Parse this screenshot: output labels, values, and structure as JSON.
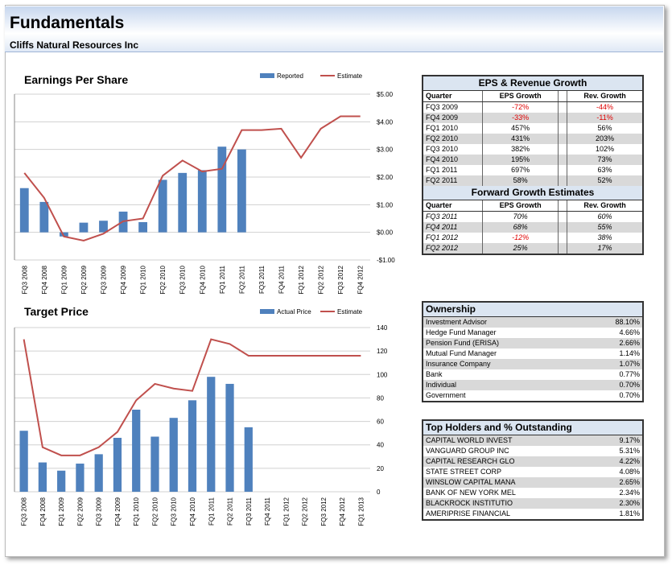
{
  "header": {
    "title": "Fundamentals",
    "subtitle": "Cliffs Natural Resources Inc"
  },
  "chart_data": [
    {
      "type": "combo",
      "title": "Earnings Per Share",
      "categories": [
        "FQ3 2008",
        "FQ4 2008",
        "FQ1 2009",
        "FQ2 2009",
        "FQ3 2009",
        "FQ4 2009",
        "FQ1 2010",
        "FQ2 2010",
        "FQ3 2010",
        "FQ4 2010",
        "FQ1 2011",
        "FQ2 2011",
        "FQ3 2011",
        "FQ4 2011",
        "FQ1 2012",
        "FQ2 2012",
        "FQ3 2012",
        "FQ4 2012"
      ],
      "series": [
        {
          "name": "Reported",
          "kind": "bar",
          "color": "#4f81bd",
          "values": [
            1.6,
            1.1,
            -0.15,
            0.35,
            0.42,
            0.75,
            0.37,
            1.9,
            2.15,
            2.25,
            3.1,
            3.0,
            null,
            null,
            null,
            null,
            null,
            null
          ]
        },
        {
          "name": "Estimate",
          "kind": "line",
          "color": "#c0504d",
          "values": [
            2.15,
            1.25,
            -0.15,
            -0.3,
            -0.05,
            0.4,
            0.5,
            2.05,
            2.6,
            2.2,
            2.3,
            3.7,
            3.7,
            3.75,
            2.7,
            3.75,
            4.2,
            4.2
          ]
        }
      ],
      "ylim": [
        -1,
        5
      ],
      "yticks": [
        {
          "value": -1,
          "label": "-$1.00"
        },
        {
          "value": 0,
          "label": "$0.00"
        },
        {
          "value": 1,
          "label": "$1.00"
        },
        {
          "value": 2,
          "label": "$2.00"
        },
        {
          "value": 3,
          "label": "$3.00"
        },
        {
          "value": 4,
          "label": "$4.00"
        },
        {
          "value": 5,
          "label": "$5.00"
        }
      ],
      "grid": true
    },
    {
      "type": "combo",
      "title": "Target Price",
      "categories": [
        "FQ3 2008",
        "FQ4 2008",
        "FQ1 2009",
        "FQ2 2009",
        "FQ3 2009",
        "FQ4 2009",
        "FQ1 2010",
        "FQ2 2010",
        "FQ3 2010",
        "FQ4 2010",
        "FQ1 2011",
        "FQ2 2011",
        "FQ3 2011",
        "FQ4 2011",
        "FQ1 2012",
        "FQ2 2012",
        "FQ3 2012",
        "FQ4 2012",
        "FQ1 2013"
      ],
      "series": [
        {
          "name": "Actual Price",
          "kind": "bar",
          "color": "#4f81bd",
          "values": [
            52,
            25,
            18,
            24,
            32,
            46,
            70,
            47,
            63,
            78,
            98,
            92,
            55,
            null,
            null,
            null,
            null,
            null,
            null
          ]
        },
        {
          "name": "Estimate",
          "kind": "line",
          "color": "#c0504d",
          "values": [
            130,
            38,
            31,
            31,
            38,
            51,
            78,
            92,
            88,
            86,
            130,
            126,
            116,
            116,
            116,
            116,
            116,
            116,
            116
          ]
        }
      ],
      "ylim": [
        0,
        140
      ],
      "yticks": [
        0,
        20,
        40,
        60,
        80,
        100,
        120,
        140
      ],
      "grid": true
    }
  ],
  "tables": {
    "eps_growth": {
      "title": "EPS & Revenue Growth",
      "columns": [
        "Quarter",
        "EPS Growth",
        "Rev. Growth"
      ],
      "rows": [
        [
          "FQ3 2009",
          "-72%",
          "-44%"
        ],
        [
          "FQ4 2009",
          "-33%",
          "-11%"
        ],
        [
          "FQ1 2010",
          "457%",
          "56%"
        ],
        [
          "FQ2 2010",
          "431%",
          "203%"
        ],
        [
          "FQ3 2010",
          "382%",
          "102%"
        ],
        [
          "FQ4 2010",
          "195%",
          "73%"
        ],
        [
          "FQ1 2011",
          "697%",
          "63%"
        ],
        [
          "FQ2 2011",
          "58%",
          "52%"
        ]
      ]
    },
    "forward": {
      "title": "Forward Growth Estimates",
      "columns": [
        "Quarter",
        "EPS Growth",
        "Rev. Growth"
      ],
      "rows": [
        [
          "FQ3 2011",
          "70%",
          "60%"
        ],
        [
          "FQ4 2011",
          "68%",
          "55%"
        ],
        [
          "FQ1 2012",
          "-12%",
          "38%"
        ],
        [
          "FQ2 2012",
          "25%",
          "17%"
        ]
      ]
    },
    "ownership": {
      "title": "Ownership",
      "rows": [
        [
          "Investment Advisor",
          "88.10%"
        ],
        [
          "Hedge Fund Manager",
          "4.66%"
        ],
        [
          "Pension Fund (ERISA)",
          "2.66%"
        ],
        [
          "Mutual Fund Manager",
          "1.14%"
        ],
        [
          "Insurance Company",
          "1.07%"
        ],
        [
          "Bank",
          "0.77%"
        ],
        [
          "Individual",
          "0.70%"
        ],
        [
          "Government",
          "0.70%"
        ]
      ]
    },
    "holders": {
      "title": "Top Holders and % Outstanding",
      "rows": [
        [
          "CAPITAL WORLD INVEST",
          "9.17%"
        ],
        [
          "VANGUARD GROUP INC",
          "5.31%"
        ],
        [
          "CAPITAL RESEARCH GLO",
          "4.22%"
        ],
        [
          "STATE STREET CORP",
          "4.08%"
        ],
        [
          "WINSLOW CAPITAL MANA",
          "2.65%"
        ],
        [
          "BANK OF NEW YORK MEL",
          "2.34%"
        ],
        [
          "BLACKROCK INSTITUTIO",
          "2.30%"
        ],
        [
          "AMERIPRISE FINANCIAL",
          "1.81%"
        ]
      ]
    }
  }
}
